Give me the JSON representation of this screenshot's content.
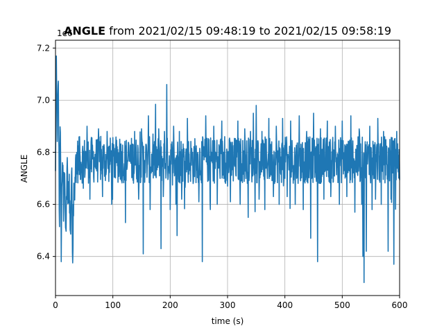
{
  "chart_data": {
    "type": "line",
    "title_bold": "ANGLE",
    "title_rest": " from 2021/02/15 09:48:19 to 2021/02/15 09:58:19",
    "xlabel": "time (s)",
    "ylabel": "ANGLE",
    "offset_label": "1e6",
    "xlim": [
      0,
      600
    ],
    "ylim": [
      6.25,
      7.23
    ],
    "xticks": [
      0,
      100,
      200,
      300,
      400,
      500,
      600
    ],
    "yticks": [
      6.4,
      6.6,
      6.8,
      7.0,
      7.2
    ],
    "xtick_labels": [
      "0",
      "100",
      "200",
      "300",
      "400",
      "500",
      "600"
    ],
    "ytick_labels": [
      "6.4",
      "6.6",
      "6.8",
      "7.0",
      "7.2"
    ],
    "grid": true,
    "line_color": "#1f77b4",
    "series": [
      {
        "x": [
          0,
          1,
          3,
          5,
          7,
          8,
          10,
          12,
          14,
          16,
          18,
          20,
          22,
          24,
          26,
          28,
          30,
          32,
          34,
          36,
          38,
          40,
          45,
          50,
          55,
          60,
          65,
          70,
          75,
          80,
          85,
          90,
          95,
          100,
          105,
          110,
          115,
          120,
          125,
          130,
          135,
          140,
          145,
          150,
          155,
          160,
          165,
          170,
          175,
          180,
          185,
          190,
          195,
          200,
          205,
          210,
          215,
          220,
          225,
          230,
          235,
          240,
          245,
          250,
          255,
          260,
          265,
          270,
          275,
          280,
          285,
          290,
          295,
          300,
          305,
          310,
          315,
          320,
          325,
          330,
          335,
          340,
          345,
          350,
          355,
          360,
          365,
          370,
          375,
          380,
          385,
          390,
          395,
          400,
          405,
          410,
          415,
          420,
          425,
          430,
          435,
          440,
          445,
          450,
          455,
          460,
          465,
          470,
          475,
          480,
          485,
          490,
          495,
          500,
          505,
          510,
          515,
          520,
          525,
          530,
          535,
          540,
          545,
          550,
          555,
          560,
          565,
          570,
          575,
          580,
          585,
          590,
          595,
          600
        ],
        "y": [
          6.7,
          7.14,
          6.9,
          7.03,
          6.5,
          6.95,
          6.45,
          6.8,
          6.55,
          6.78,
          6.42,
          6.75,
          6.6,
          6.7,
          6.46,
          6.74,
          6.42,
          6.72,
          6.65,
          6.86,
          6.7,
          6.8,
          6.68,
          6.84,
          6.72,
          6.82,
          6.64,
          6.86,
          6.7,
          6.8,
          6.68,
          6.84,
          6.63,
          6.86,
          6.68,
          6.82,
          6.71,
          6.85,
          6.69,
          6.82,
          6.67,
          6.86,
          6.7,
          6.8,
          6.41,
          6.82,
          6.7,
          6.86,
          6.72,
          6.8,
          6.69,
          6.84,
          6.72,
          6.8,
          6.64,
          6.86,
          6.7,
          6.8,
          6.65,
          6.84,
          6.7,
          6.82,
          6.68,
          6.86,
          6.71,
          6.8,
          6.65,
          6.86,
          6.68,
          6.8,
          6.66,
          6.84,
          6.7,
          6.8,
          6.62,
          6.87,
          6.72,
          6.82,
          6.66,
          6.85,
          6.7,
          6.82,
          6.68,
          6.86,
          6.7,
          6.84,
          6.71,
          6.8,
          6.66,
          6.86,
          6.7,
          6.82,
          6.68,
          6.86,
          6.71,
          6.8,
          6.64,
          6.85,
          6.7,
          6.82,
          6.67,
          6.86,
          6.7,
          6.8,
          6.64,
          6.86,
          6.69,
          6.82,
          6.7,
          6.85,
          6.68,
          6.8,
          6.66,
          6.86,
          6.72,
          6.82,
          6.65,
          6.86,
          6.7,
          6.8,
          6.62,
          6.84,
          6.7,
          6.85,
          6.68,
          6.82,
          6.67,
          6.86,
          6.7,
          6.8,
          6.69,
          6.84,
          6.7,
          6.78
        ],
        "spikes": [
          [
            42,
            6.86
          ],
          [
            55,
            6.9
          ],
          [
            60,
            6.62
          ],
          [
            68,
            6.78
          ],
          [
            75,
            6.89
          ],
          [
            82,
            6.63
          ],
          [
            90,
            6.88
          ],
          [
            98,
            6.6
          ],
          [
            105,
            6.82
          ],
          [
            112,
            6.85
          ],
          [
            118,
            6.71
          ],
          [
            122,
            6.53
          ],
          [
            128,
            6.82
          ],
          [
            138,
            6.88
          ],
          [
            145,
            6.62
          ],
          [
            150,
            6.89
          ],
          [
            153,
            6.41
          ],
          [
            160,
            6.75
          ],
          [
            162,
            6.94
          ],
          [
            165,
            6.58
          ],
          [
            170,
            6.87
          ],
          [
            175,
            6.71
          ],
          [
            180,
            6.89
          ],
          [
            184,
            6.43
          ],
          [
            188,
            6.63
          ],
          [
            190,
            6.88
          ],
          [
            194,
            7.06
          ],
          [
            200,
            6.58
          ],
          [
            206,
            6.9
          ],
          [
            210,
            6.6
          ],
          [
            212,
            6.48
          ],
          [
            216,
            6.88
          ],
          [
            220,
            6.62
          ],
          [
            230,
            6.93
          ],
          [
            240,
            6.68
          ],
          [
            250,
            6.61
          ],
          [
            256,
            6.38
          ],
          [
            262,
            6.94
          ],
          [
            270,
            6.58
          ],
          [
            276,
            6.9
          ],
          [
            282,
            6.6
          ],
          [
            290,
            6.92
          ],
          [
            295,
            6.86
          ],
          [
            300,
            6.67
          ],
          [
            305,
            6.61
          ],
          [
            310,
            6.69
          ],
          [
            318,
            6.92
          ],
          [
            322,
            6.6
          ],
          [
            330,
            6.89
          ],
          [
            336,
            6.55
          ],
          [
            340,
            6.88
          ],
          [
            345,
            6.95
          ],
          [
            350,
            6.98
          ],
          [
            355,
            6.62
          ],
          [
            360,
            6.88
          ],
          [
            365,
            6.58
          ],
          [
            372,
            6.93
          ],
          [
            380,
            6.63
          ],
          [
            385,
            6.9
          ],
          [
            390,
            6.6
          ],
          [
            396,
            6.93
          ],
          [
            404,
            6.63
          ],
          [
            410,
            6.92
          ],
          [
            418,
            6.6
          ],
          [
            425,
            6.94
          ],
          [
            432,
            6.58
          ],
          [
            438,
            6.88
          ],
          [
            445,
            6.47
          ],
          [
            450,
            6.95
          ],
          [
            457,
            6.38
          ],
          [
            462,
            6.89
          ],
          [
            468,
            6.62
          ],
          [
            474,
            6.92
          ],
          [
            480,
            6.63
          ],
          [
            488,
            6.9
          ],
          [
            495,
            6.6
          ],
          [
            500,
            6.92
          ],
          [
            508,
            6.63
          ],
          [
            515,
            6.94
          ],
          [
            522,
            6.57
          ],
          [
            530,
            6.88
          ],
          [
            534,
            6.6
          ],
          [
            536,
            6.4
          ],
          [
            538,
            6.3
          ],
          [
            542,
            6.42
          ],
          [
            548,
            6.9
          ],
          [
            552,
            6.58
          ],
          [
            558,
            6.62
          ],
          [
            562,
            6.93
          ],
          [
            568,
            6.6
          ],
          [
            572,
            6.88
          ],
          [
            580,
            6.42
          ],
          [
            585,
            6.62
          ],
          [
            590,
            6.37
          ],
          [
            595,
            6.88
          ]
        ]
      }
    ]
  }
}
